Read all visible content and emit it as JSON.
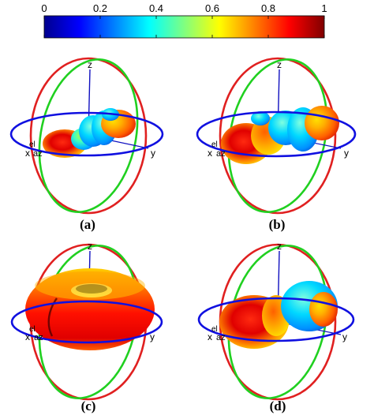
{
  "colorbar": {
    "tick_labels": [
      "0",
      "0.2",
      "0.4",
      "0.6",
      "0.8",
      "1"
    ],
    "tick_values": [
      0,
      0.2,
      0.4,
      0.6,
      0.8,
      1
    ],
    "range": [
      0,
      1
    ],
    "colormap": [
      "#00008f",
      "#0000ff",
      "#0080ff",
      "#00ffff",
      "#80ff80",
      "#ffff00",
      "#ff8000",
      "#ff0000",
      "#800000"
    ]
  },
  "axis_colors": {
    "xy_circle": "#1010e0",
    "xz_circle": "#e02020",
    "yz_circle": "#20d020",
    "axes": "#1010c0"
  },
  "panels": [
    {
      "caption": "(a)",
      "axis_labels": {
        "z": "z",
        "y": "y",
        "x": "x",
        "el": "el",
        "az": "az"
      },
      "shape": "multi-lobe-small"
    },
    {
      "caption": "(b)",
      "axis_labels": {
        "z": "z",
        "y": "y",
        "x": "x",
        "el": "el",
        "az": "az"
      },
      "shape": "multi-lobe-large"
    },
    {
      "caption": "(c)",
      "axis_labels": {
        "z": "z",
        "y": "y",
        "x": "x",
        "el": "el",
        "az": "az"
      },
      "shape": "torus"
    },
    {
      "caption": "(d)",
      "axis_labels": {
        "z": "z",
        "y": "y",
        "x": "x",
        "el": "el",
        "az": "az"
      },
      "shape": "two-lobe"
    }
  ]
}
